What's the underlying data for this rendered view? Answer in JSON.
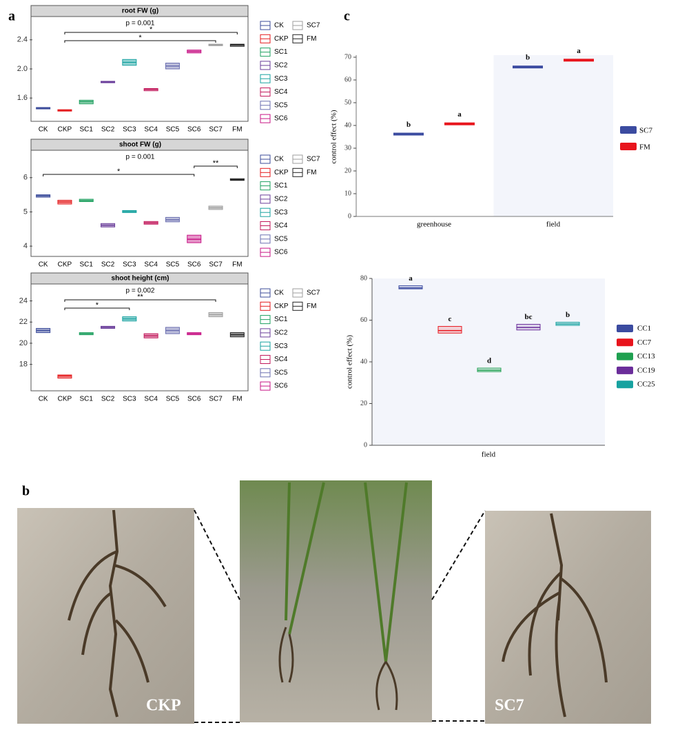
{
  "panel_labels": [
    "a",
    "b",
    "c"
  ],
  "photos": {
    "labels": [
      "CKP",
      "SC7"
    ]
  },
  "chart_data": [
    {
      "type": "boxplot",
      "title": "root FW (g)",
      "categories": [
        "CK",
        "CKP",
        "SC1",
        "SC2",
        "SC3",
        "SC4",
        "SC5",
        "SC6",
        "SC7",
        "FM"
      ],
      "colors": [
        "#3b4b9a",
        "#e41a1c",
        "#1fa060",
        "#6a3d9a",
        "#17a2a0",
        "#c2185b",
        "#6b6fb0",
        "#c71585",
        "#9e9e9e",
        "#222222"
      ],
      "median": [
        1.46,
        1.43,
        1.55,
        1.82,
        2.09,
        1.72,
        2.04,
        2.24,
        2.33,
        2.33
      ],
      "q1": [
        1.45,
        1.42,
        1.52,
        1.81,
        2.05,
        1.7,
        2.0,
        2.22,
        2.32,
        2.31
      ],
      "q3": [
        1.47,
        1.44,
        1.57,
        1.83,
        2.13,
        1.73,
        2.08,
        2.26,
        2.34,
        2.34
      ],
      "ylim": [
        1.28,
        2.72
      ],
      "yticks": [
        1.6,
        {
          "value": 2,
          "label": "2.0"
        },
        2.4
      ],
      "annotation": "p = 0.001",
      "brackets": [
        {
          "from": "CKP",
          "to": "FM",
          "label": "*"
        },
        {
          "from": "CKP",
          "to": "SC7",
          "label": "*"
        }
      ]
    },
    {
      "type": "boxplot",
      "title": "shoot FW (g)",
      "categories": [
        "CK",
        "CKP",
        "SC1",
        "SC2",
        "SC3",
        "SC4",
        "SC5",
        "SC6",
        "SC7",
        "FM"
      ],
      "colors": [
        "#3b4b9a",
        "#e41a1c",
        "#1fa060",
        "#6a3d9a",
        "#17a2a0",
        "#c2185b",
        "#6b6fb0",
        "#c71585",
        "#9e9e9e",
        "#222222"
      ],
      "median": [
        5.47,
        5.29,
        5.33,
        4.61,
        5.01,
        4.68,
        4.77,
        4.2,
        5.12,
        5.94
      ],
      "q1": [
        5.43,
        5.23,
        5.3,
        4.56,
        4.98,
        4.64,
        4.71,
        4.1,
        5.07,
        5.92
      ],
      "q3": [
        5.5,
        5.34,
        5.37,
        4.66,
        5.04,
        4.72,
        4.84,
        4.32,
        5.17,
        5.97
      ],
      "ylim": [
        3.7,
        6.8
      ],
      "yticks": [
        4,
        5,
        6
      ],
      "annotation": "p = 0.001",
      "brackets": [
        {
          "from": "SC6",
          "to": "FM",
          "label": "**"
        },
        {
          "from": "CK",
          "to": "SC6",
          "label": "*"
        }
      ]
    },
    {
      "type": "boxplot",
      "title": "shoot height (cm)",
      "categories": [
        "CK",
        "CKP",
        "SC1",
        "SC2",
        "SC3",
        "SC4",
        "SC5",
        "SC6",
        "SC7",
        "FM"
      ],
      "colors": [
        "#3b4b9a",
        "#e41a1c",
        "#1fa060",
        "#6a3d9a",
        "#17a2a0",
        "#c2185b",
        "#6b6fb0",
        "#c71585",
        "#9e9e9e",
        "#222222"
      ],
      "median": [
        21.2,
        16.9,
        20.9,
        21.5,
        22.3,
        20.7,
        21.2,
        20.9,
        22.7,
        20.8
      ],
      "q1": [
        21.0,
        16.7,
        20.8,
        21.4,
        22.1,
        20.5,
        20.9,
        20.8,
        22.5,
        20.6
      ],
      "q3": [
        21.4,
        17.0,
        21.0,
        21.6,
        22.5,
        20.9,
        21.5,
        21.0,
        22.9,
        21.0
      ],
      "ylim": [
        15.5,
        25.6
      ],
      "yticks": [
        18,
        20,
        22,
        24
      ],
      "annotation": "p = 0.002",
      "brackets": [
        {
          "from": "CKP",
          "to": "SC7",
          "label": "**"
        },
        {
          "from": "CKP",
          "to": "SC3",
          "label": "*"
        }
      ]
    },
    {
      "type": "bar",
      "y_label": "control effect (%)",
      "categories": [
        "greenhouse",
        "field"
      ],
      "series": [
        {
          "name": "SC7",
          "color": "#3b4ba0",
          "values": [
            36.2,
            65.7
          ],
          "letters": [
            "b",
            "b"
          ]
        },
        {
          "name": "FM",
          "color": "#e8141c",
          "values": [
            40.7,
            68.7
          ],
          "letters": [
            "a",
            "a"
          ]
        }
      ],
      "ylim": [
        0,
        70
      ],
      "yticks": [
        0,
        10,
        20,
        30,
        40,
        50,
        60,
        70
      ]
    },
    {
      "type": "boxplot",
      "x_label": "field",
      "y_label": "control effect (%)",
      "categories": [
        "CC1",
        "CC7",
        "CC13",
        "CC19",
        "CC25"
      ],
      "colors": [
        "#3b4ba0",
        "#e8141c",
        "#1fa050",
        "#6a2d9a",
        "#17a2a0"
      ],
      "median": [
        75.5,
        55.0,
        36.0,
        56.5,
        58.2
      ],
      "q1": [
        75.0,
        53.8,
        35.3,
        55.3,
        57.5
      ],
      "q3": [
        76.5,
        57.0,
        37.0,
        58.0,
        59.0
      ],
      "letters": [
        "a",
        "c",
        "d",
        "bc",
        "b"
      ],
      "ylim": [
        0,
        80
      ],
      "yticks": [
        0,
        20,
        40,
        60,
        80
      ]
    }
  ]
}
